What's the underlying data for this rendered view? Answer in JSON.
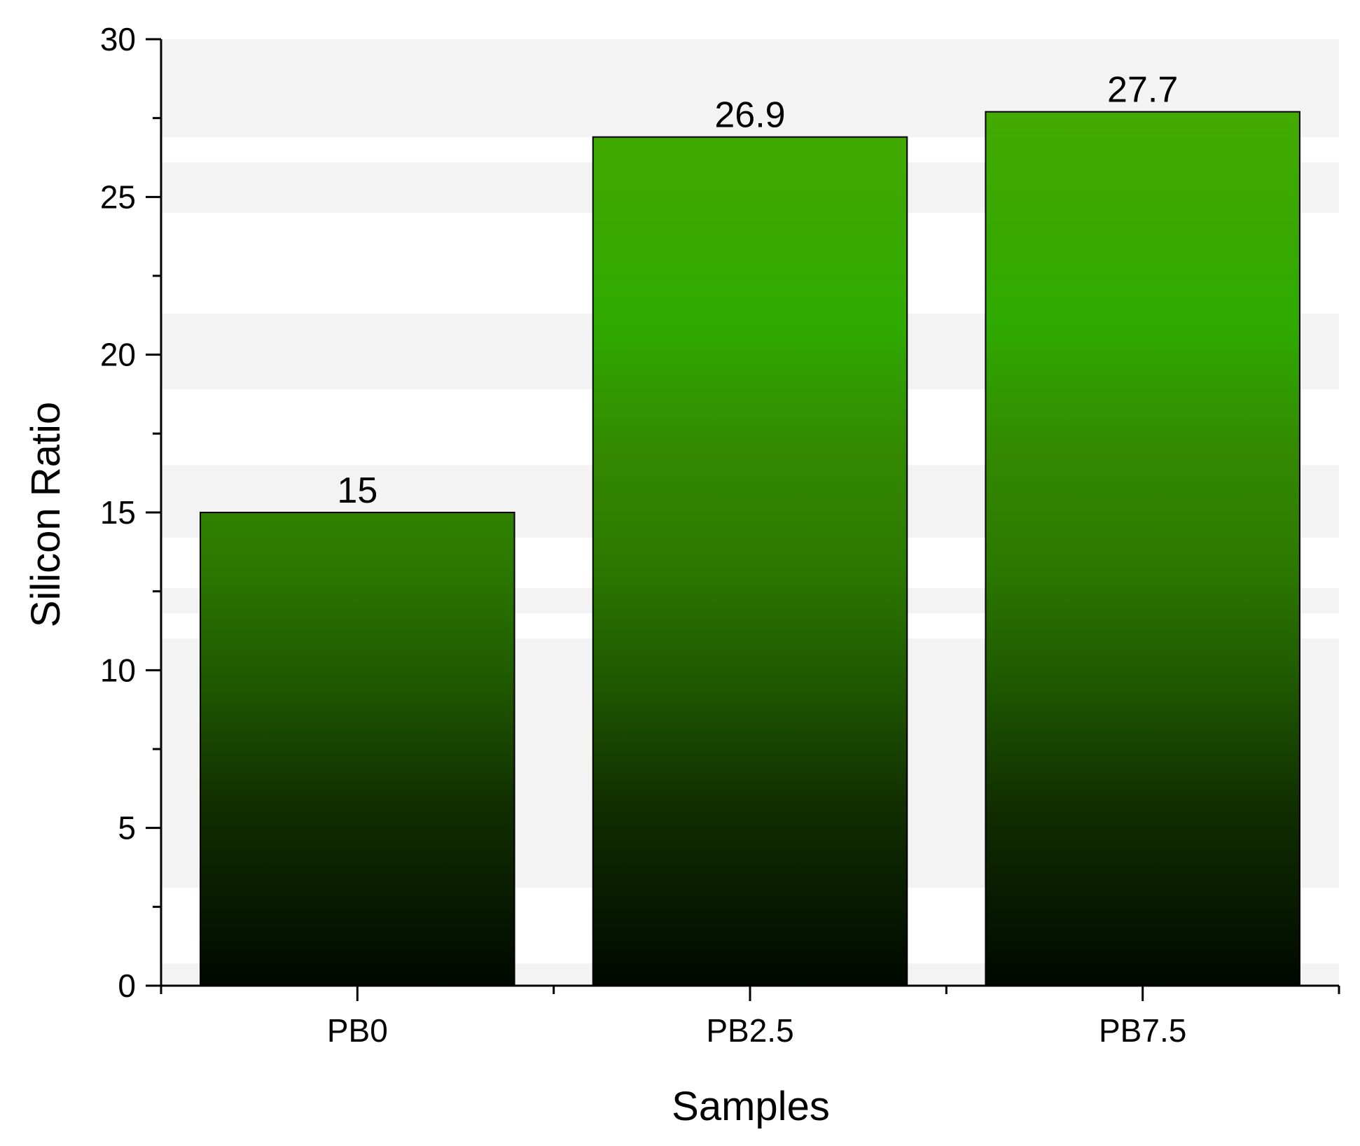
{
  "chart_data": {
    "type": "bar",
    "title": "",
    "xlabel": "Samples",
    "ylabel": "Silicon Ratio",
    "categories": [
      "PB0",
      "PB2.5",
      "PB7.5"
    ],
    "values": [
      15,
      26.9,
      27.7
    ],
    "data_labels": [
      "15",
      "26.9",
      "27.7"
    ],
    "ylim": [
      0,
      30
    ],
    "yticks": [
      0,
      5,
      10,
      15,
      20,
      25,
      30
    ],
    "ytick_labels": [
      "0",
      "5",
      "10",
      "15",
      "20",
      "25",
      "30"
    ],
    "grid": false,
    "legend": "none",
    "background_bands": [
      [
        0,
        0.7
      ],
      [
        3.1,
        11
      ],
      [
        11.8,
        12.6
      ],
      [
        14.2,
        16.5
      ],
      [
        18.9,
        21.3
      ],
      [
        24.5,
        26.1
      ],
      [
        26.9,
        30
      ]
    ],
    "colors": {
      "bar_bottom": "#000800",
      "bar_top": "#44aa00",
      "bar_mid": "#2e8a00",
      "band": "#f3f3f3",
      "axis": "#000000"
    }
  }
}
